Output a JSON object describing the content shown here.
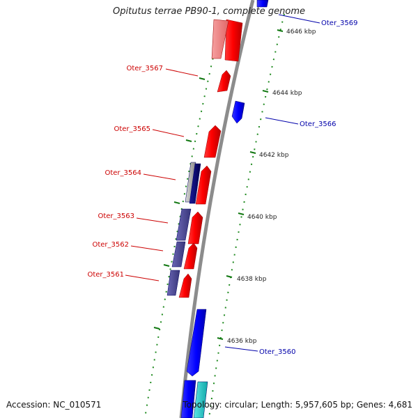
{
  "title": "Opitutus terrae PB90-1, complete genome",
  "accession": "Accession: NC_010571",
  "topology": "Topology: circular; Length: 5,957,605 bp; Genes: 4,681",
  "colors": {
    "backbone": "#8c8c8c",
    "forward": "#ff0000",
    "forward_light": "#f08080",
    "reverse": "#0000ff",
    "dark_blue": "#000080",
    "slate": "#4b4898",
    "cyan": "#18c8c8",
    "grey": "#b0b0b0",
    "tick": "#007700",
    "forward_label": "#cc0000",
    "reverse_label": "#0000aa"
  },
  "scale_labels": [
    "4646 kbp",
    "4644 kbp",
    "4642 kbp",
    "4640 kbp",
    "4638 kbp",
    "4636 kbp"
  ],
  "gene_labels_forward": [
    "Oter_3567",
    "Oter_3565",
    "Oter_3564",
    "Oter_3563",
    "Oter_3562",
    "Oter_3561"
  ],
  "gene_labels_reverse": [
    "Oter_3569",
    "Oter_3566",
    "Oter_3560"
  ]
}
